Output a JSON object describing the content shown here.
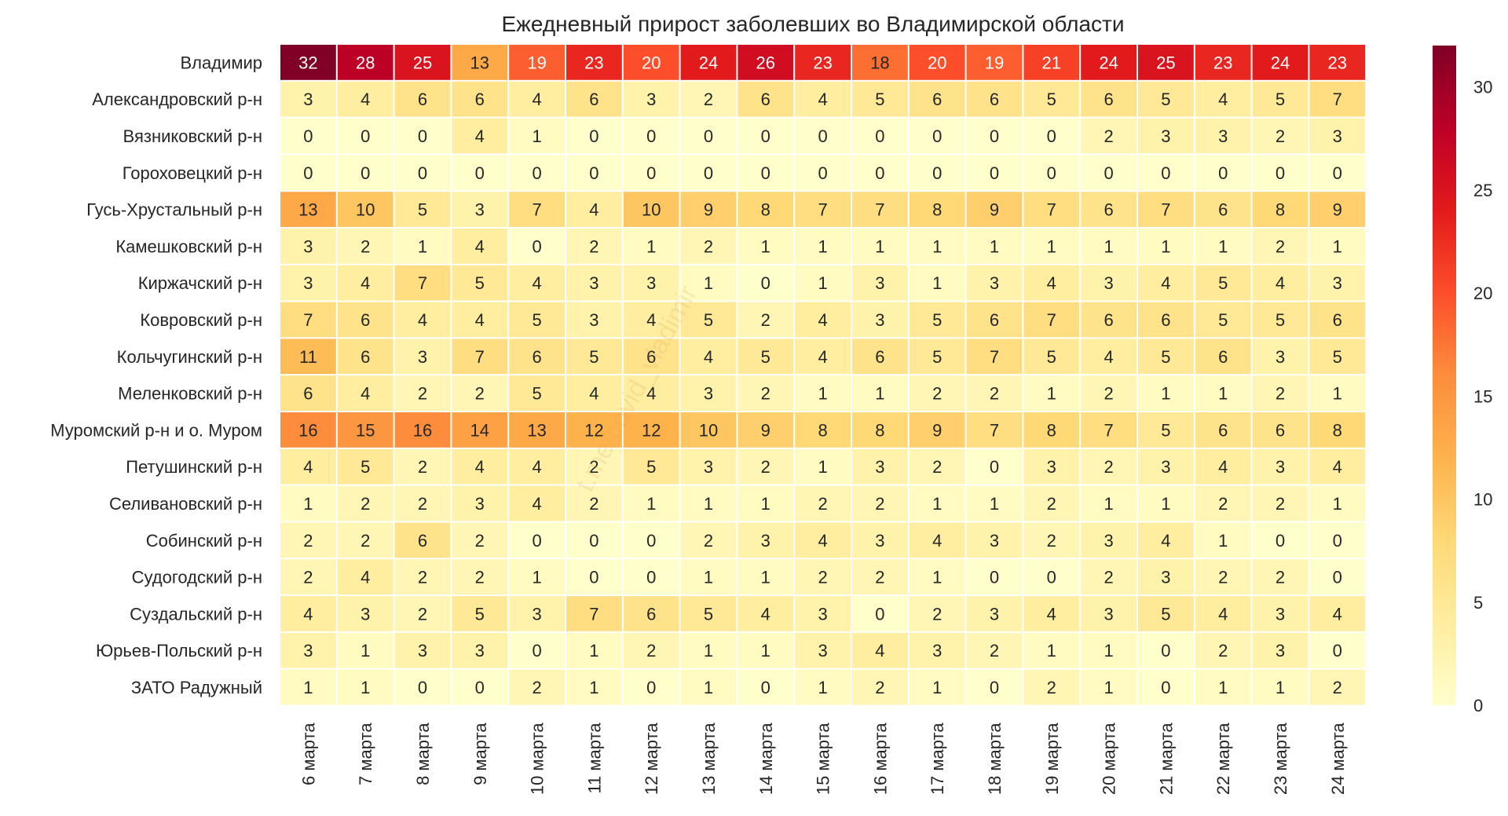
{
  "chart_data": {
    "type": "heatmap",
    "title": "Ежедневный прирост заболевших во Владимирской области",
    "watermark": "t.me/covid_vladimir",
    "x_categories": [
      "6 марта",
      "7 марта",
      "8 марта",
      "9 марта",
      "10 марта",
      "11 марта",
      "12 марта",
      "13 марта",
      "14 марта",
      "15 марта",
      "16 марта",
      "17 марта",
      "18 марта",
      "19 марта",
      "20 марта",
      "21 марта",
      "22 марта",
      "23 марта",
      "24 марта"
    ],
    "y_categories": [
      "Владимир",
      "Александровский р-н",
      "Вязниковский р-н",
      "Гороховецкий р-н",
      "Гусь-Хрустальный р-н",
      "Камешковский р-н",
      "Киржачский р-н",
      "Ковровский р-н",
      "Кольчугинский р-н",
      "Меленковский р-н",
      "Муромский р-н и о. Муром",
      "Петушинский р-н",
      "Селивановский р-н",
      "Собинский р-н",
      "Судогодский р-н",
      "Суздальский р-н",
      "Юрьев-Польский р-н",
      "ЗАТО Радужный"
    ],
    "values": [
      [
        32,
        28,
        25,
        13,
        19,
        23,
        20,
        24,
        26,
        23,
        18,
        20,
        19,
        21,
        24,
        25,
        23,
        24,
        23
      ],
      [
        3,
        4,
        6,
        6,
        4,
        6,
        3,
        2,
        6,
        4,
        5,
        6,
        6,
        5,
        6,
        5,
        4,
        5,
        7
      ],
      [
        0,
        0,
        0,
        4,
        1,
        0,
        0,
        0,
        0,
        0,
        0,
        0,
        0,
        0,
        2,
        3,
        3,
        2,
        3
      ],
      [
        0,
        0,
        0,
        0,
        0,
        0,
        0,
        0,
        0,
        0,
        0,
        0,
        0,
        0,
        0,
        0,
        0,
        0,
        0
      ],
      [
        13,
        10,
        5,
        3,
        7,
        4,
        10,
        9,
        8,
        7,
        7,
        8,
        9,
        7,
        6,
        7,
        6,
        8,
        9
      ],
      [
        3,
        2,
        1,
        4,
        0,
        2,
        1,
        2,
        1,
        1,
        1,
        1,
        1,
        1,
        1,
        1,
        1,
        2,
        1
      ],
      [
        3,
        4,
        7,
        5,
        4,
        3,
        3,
        1,
        0,
        1,
        3,
        1,
        3,
        4,
        3,
        4,
        5,
        4,
        3
      ],
      [
        7,
        6,
        4,
        4,
        5,
        3,
        4,
        5,
        2,
        4,
        3,
        5,
        6,
        7,
        6,
        6,
        5,
        5,
        6
      ],
      [
        11,
        6,
        3,
        7,
        6,
        5,
        6,
        4,
        5,
        4,
        6,
        5,
        7,
        5,
        4,
        5,
        6,
        3,
        5
      ],
      [
        6,
        4,
        2,
        2,
        5,
        4,
        4,
        3,
        2,
        1,
        1,
        2,
        2,
        1,
        2,
        1,
        1,
        2,
        1
      ],
      [
        16,
        15,
        16,
        14,
        13,
        12,
        12,
        10,
        9,
        8,
        8,
        9,
        7,
        8,
        7,
        5,
        6,
        6,
        8
      ],
      [
        4,
        5,
        2,
        4,
        4,
        2,
        5,
        3,
        2,
        1,
        3,
        2,
        0,
        3,
        2,
        3,
        4,
        3,
        4
      ],
      [
        1,
        2,
        2,
        3,
        4,
        2,
        1,
        1,
        1,
        2,
        2,
        1,
        1,
        2,
        1,
        1,
        2,
        2,
        1
      ],
      [
        2,
        2,
        6,
        2,
        0,
        0,
        0,
        2,
        3,
        4,
        3,
        4,
        3,
        2,
        3,
        4,
        1,
        0,
        0
      ],
      [
        2,
        4,
        2,
        2,
        1,
        0,
        0,
        1,
        1,
        2,
        2,
        1,
        0,
        0,
        2,
        3,
        2,
        2,
        0
      ],
      [
        4,
        3,
        2,
        5,
        3,
        7,
        6,
        5,
        4,
        3,
        0,
        2,
        3,
        4,
        3,
        5,
        4,
        3,
        4
      ],
      [
        3,
        1,
        3,
        3,
        0,
        1,
        2,
        1,
        1,
        3,
        4,
        3,
        2,
        1,
        1,
        0,
        2,
        3,
        0
      ],
      [
        1,
        1,
        0,
        0,
        2,
        1,
        0,
        1,
        0,
        1,
        2,
        1,
        0,
        2,
        1,
        0,
        1,
        1,
        2
      ]
    ],
    "colorbar": {
      "min": 0,
      "max": 32,
      "ticks": [
        0,
        5,
        10,
        15,
        20,
        25,
        30
      ],
      "colormap": "YlOrRd"
    },
    "grid": false
  }
}
